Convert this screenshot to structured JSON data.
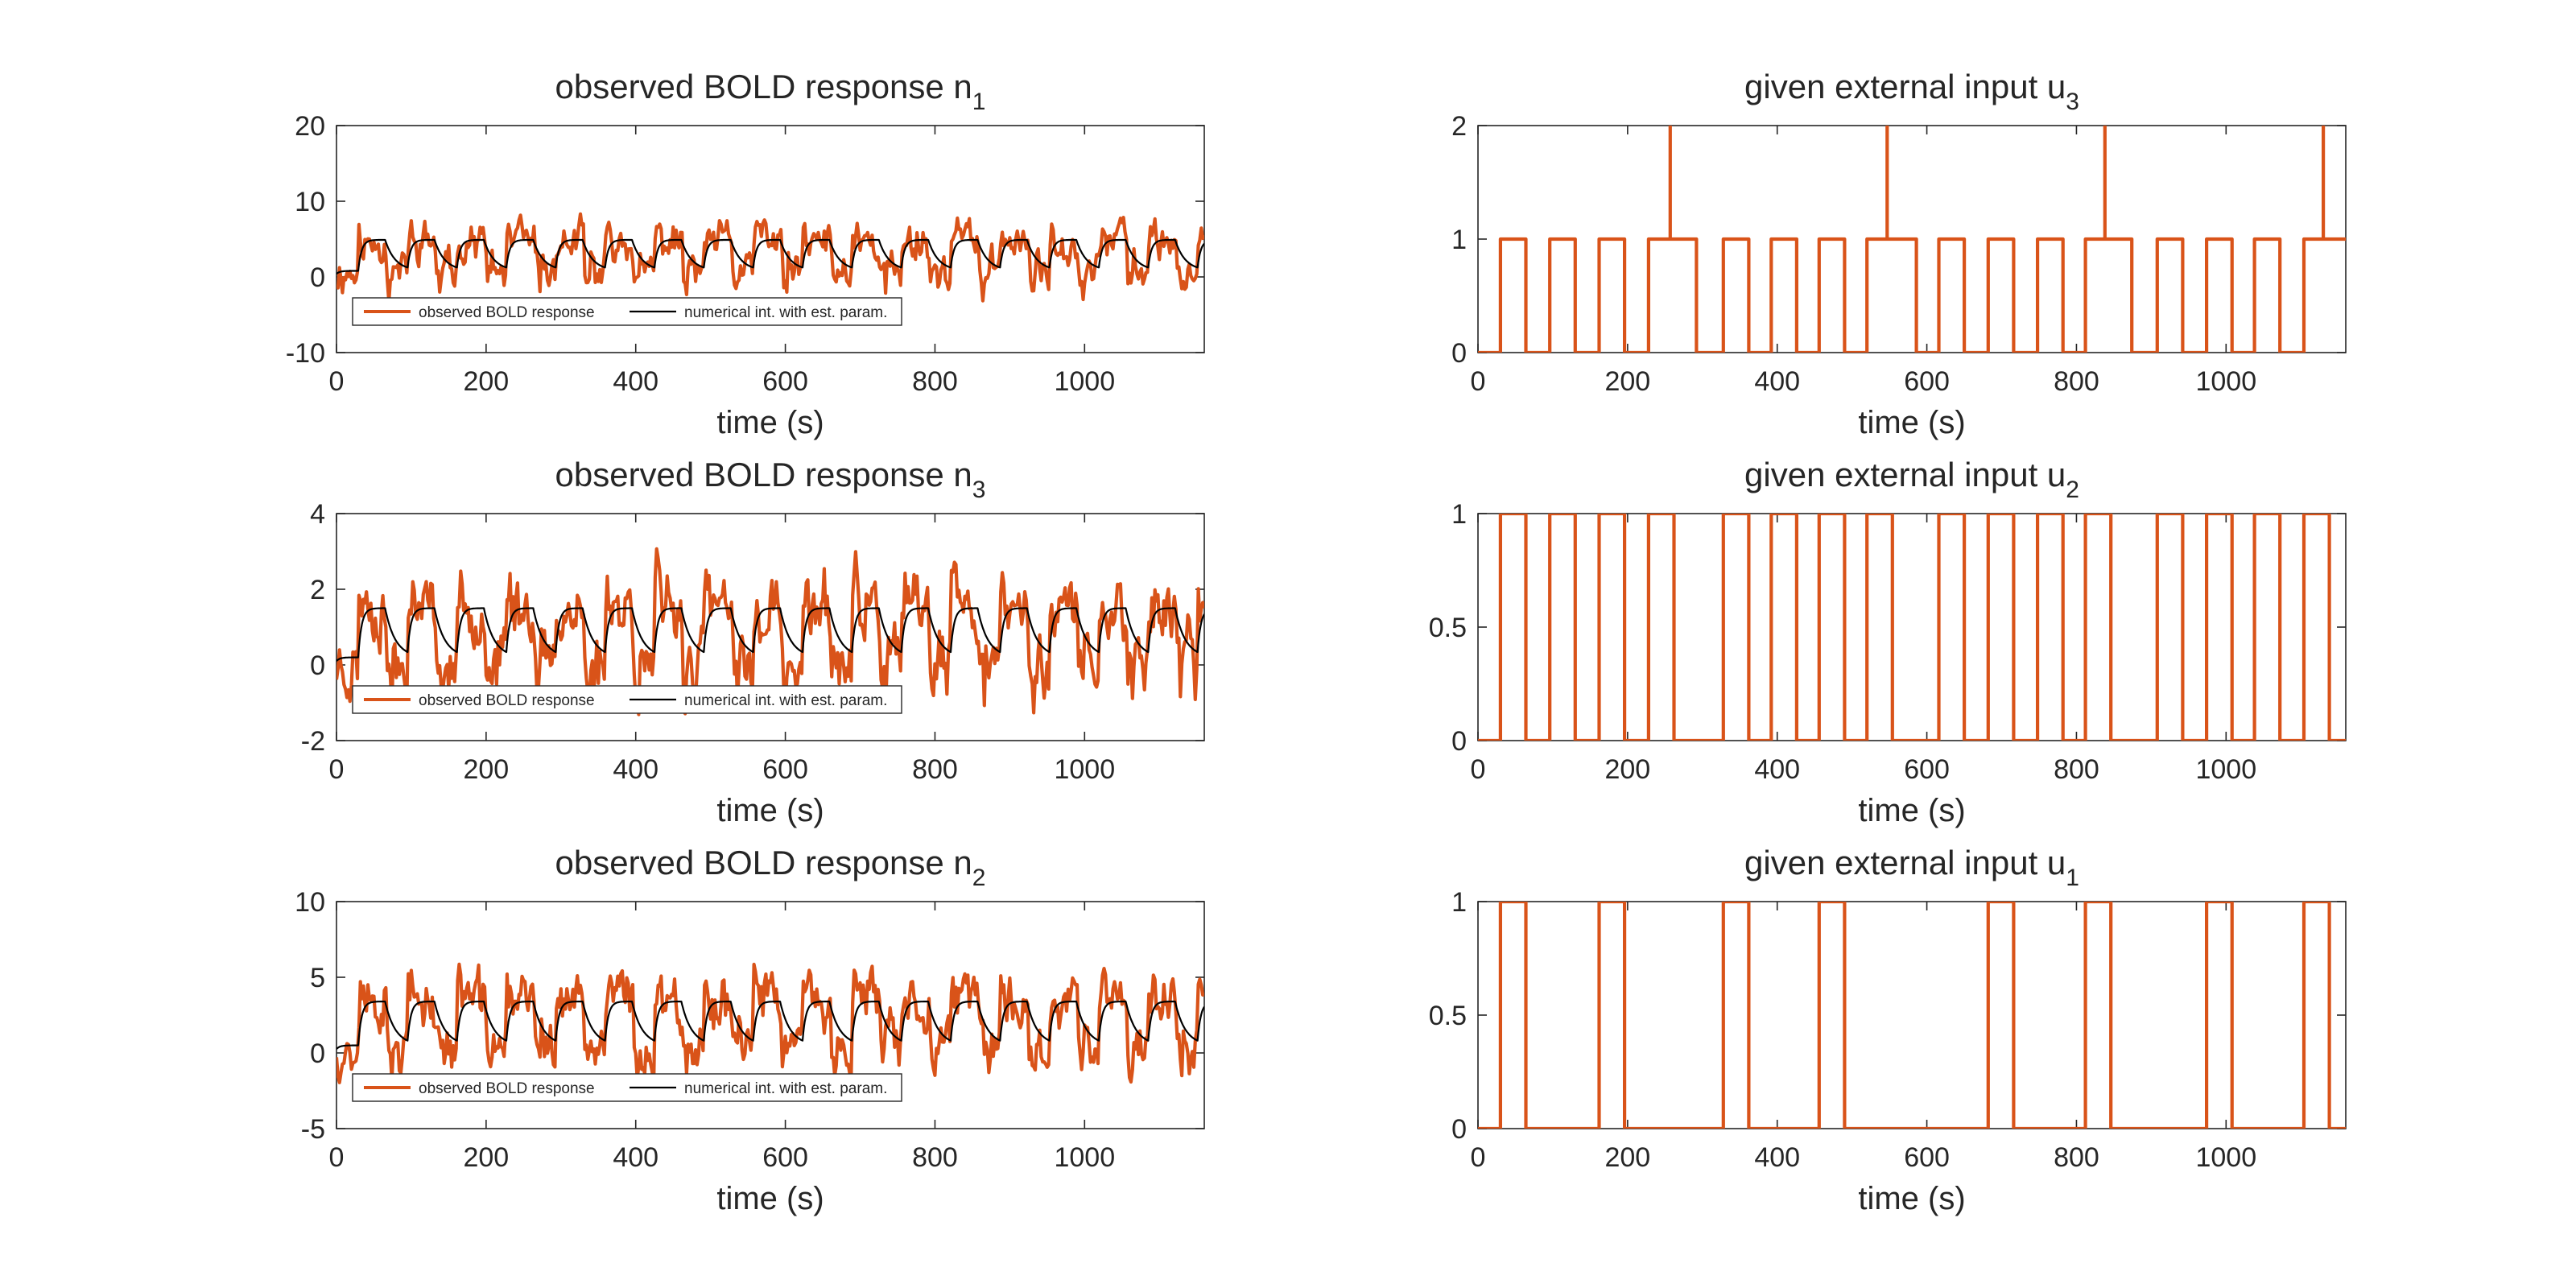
{
  "colors": {
    "observed": "#D95319",
    "fit": "#000000",
    "input": "#D95319",
    "axis": "#262626",
    "background": "#FFFFFF"
  },
  "chart_data": [
    {
      "id": "bold-n1",
      "type": "line",
      "title": "observed BOLD response n",
      "title_subscript": "1",
      "xlabel": "time (s)",
      "ylabel": "",
      "xlim": [
        0,
        1160
      ],
      "ylim": [
        -10,
        20
      ],
      "xticks": [
        0,
        200,
        400,
        600,
        800,
        1000
      ],
      "yticks": [
        -10,
        0,
        10,
        20
      ],
      "xtick_labels": [
        "0",
        "200",
        "400",
        "600",
        "800",
        "1000"
      ],
      "ytick_labels": [
        "-10",
        "0",
        "10",
        "20"
      ],
      "grid": false,
      "legend": {
        "position": "bottom-left",
        "entries": [
          "observed BOLD response",
          "numerical int. with est. param."
        ]
      },
      "noise_seed": 11,
      "series": [
        {
          "name": "observed BOLD response",
          "kind": "bold_observed",
          "block_period": 66,
          "block_on": 36,
          "first_on": 30,
          "low": 0.6,
          "high": 4.8,
          "noise_amp": 2.3,
          "spike_amp": 3.0,
          "dip_amp": 2.5
        },
        {
          "name": "numerical int. with est. param.",
          "kind": "bold_model",
          "block_period": 66,
          "block_on": 36,
          "first_on": 30,
          "low": 0.8,
          "high": 4.9,
          "tau_rise": 5,
          "tau_fall": 14
        }
      ]
    },
    {
      "id": "input-u3",
      "type": "line",
      "title": "given external input u",
      "title_subscript": "3",
      "xlabel": "time (s)",
      "ylabel": "",
      "xlim": [
        0,
        1160
      ],
      "ylim": [
        0,
        2
      ],
      "xticks": [
        0,
        200,
        400,
        600,
        800,
        1000
      ],
      "yticks": [
        0,
        1,
        2
      ],
      "xtick_labels": [
        "0",
        "200",
        "400",
        "600",
        "800",
        "1000"
      ],
      "ytick_labels": [
        "0",
        "1",
        "2"
      ],
      "grid": false,
      "series": [
        {
          "kind": "step",
          "on_intervals": [
            [
              30,
              64
            ],
            [
              96,
              130
            ],
            [
              162,
              196
            ],
            [
              228,
              292
            ],
            [
              328,
              362
            ],
            [
              392,
              426
            ],
            [
              456,
              490
            ],
            [
              520,
              586
            ],
            [
              616,
              650
            ],
            [
              682,
              716
            ],
            [
              748,
              782
            ],
            [
              812,
              874
            ],
            [
              908,
              942
            ],
            [
              974,
              1008
            ],
            [
              1038,
              1072
            ],
            [
              1104,
              1160
            ]
          ],
          "spikes": [
            [
              257,
              2
            ],
            [
              547,
              2
            ],
            [
              838,
              2
            ],
            [
              1130,
              2
            ]
          ]
        }
      ]
    },
    {
      "id": "bold-n3",
      "type": "line",
      "title": "observed BOLD response n",
      "title_subscript": "3",
      "xlabel": "time (s)",
      "ylabel": "",
      "xlim": [
        0,
        1160
      ],
      "ylim": [
        -2,
        4
      ],
      "xticks": [
        0,
        200,
        400,
        600,
        800,
        1000
      ],
      "yticks": [
        -2,
        0,
        2,
        4
      ],
      "xtick_labels": [
        "0",
        "200",
        "400",
        "600",
        "800",
        "1000"
      ],
      "ytick_labels": [
        "-2",
        "0",
        "2",
        "4"
      ],
      "grid": false,
      "legend": {
        "position": "bottom-left",
        "entries": [
          "observed BOLD response",
          "numerical int. with est. param."
        ]
      },
      "noise_seed": 23,
      "series": [
        {
          "name": "observed BOLD response",
          "kind": "bold_observed",
          "block_period": 66,
          "block_on": 36,
          "first_on": 30,
          "low": 0.0,
          "high": 1.5,
          "noise_amp": 0.75,
          "spike_amp": 1.1,
          "dip_amp": 0.9
        },
        {
          "name": "numerical int. with est. param.",
          "kind": "bold_model",
          "block_period": 66,
          "block_on": 36,
          "first_on": 30,
          "low": 0.2,
          "high": 1.5,
          "tau_rise": 5,
          "tau_fall": 14
        }
      ]
    },
    {
      "id": "input-u2",
      "type": "line",
      "title": "given external input u",
      "title_subscript": "2",
      "xlabel": "time (s)",
      "ylabel": "",
      "xlim": [
        0,
        1160
      ],
      "ylim": [
        0,
        1
      ],
      "xticks": [
        0,
        200,
        400,
        600,
        800,
        1000
      ],
      "yticks": [
        0,
        0.5,
        1
      ],
      "xtick_labels": [
        "0",
        "200",
        "400",
        "600",
        "800",
        "1000"
      ],
      "ytick_labels": [
        "0",
        "0.5",
        "1"
      ],
      "grid": false,
      "series": [
        {
          "kind": "step",
          "on_intervals": [
            [
              30,
              64
            ],
            [
              96,
              130
            ],
            [
              162,
              196
            ],
            [
              228,
              262
            ],
            [
              328,
              362
            ],
            [
              392,
              426
            ],
            [
              456,
              490
            ],
            [
              520,
              554
            ],
            [
              616,
              650
            ],
            [
              682,
              716
            ],
            [
              748,
              782
            ],
            [
              812,
              846
            ],
            [
              908,
              942
            ],
            [
              974,
              1008
            ],
            [
              1038,
              1072
            ],
            [
              1104,
              1138
            ]
          ],
          "spikes": []
        }
      ]
    },
    {
      "id": "bold-n2",
      "type": "line",
      "title": "observed BOLD response n",
      "title_subscript": "2",
      "xlabel": "time (s)",
      "ylabel": "",
      "xlim": [
        0,
        1160
      ],
      "ylim": [
        -5,
        10
      ],
      "xticks": [
        0,
        200,
        400,
        600,
        800,
        1000
      ],
      "yticks": [
        -5,
        0,
        5,
        10
      ],
      "xtick_labels": [
        "0",
        "200",
        "400",
        "600",
        "800",
        "1000"
      ],
      "ytick_labels": [
        "-5",
        "0",
        "5",
        "10"
      ],
      "grid": false,
      "legend": {
        "position": "bottom-left",
        "entries": [
          "observed BOLD response",
          "numerical int. with est. param."
        ]
      },
      "noise_seed": 37,
      "series": [
        {
          "name": "observed BOLD response",
          "kind": "bold_observed",
          "block_period": 66,
          "block_on": 36,
          "first_on": 30,
          "low": 0.3,
          "high": 3.5,
          "noise_amp": 1.6,
          "spike_amp": 2.4,
          "dip_amp": 1.8
        },
        {
          "name": "numerical int. with est. param.",
          "kind": "bold_model",
          "block_period": 66,
          "block_on": 36,
          "first_on": 30,
          "low": 0.5,
          "high": 3.4,
          "tau_rise": 5,
          "tau_fall": 14
        }
      ]
    },
    {
      "id": "input-u1",
      "type": "line",
      "title": "given external input u",
      "title_subscript": "1",
      "xlabel": "time (s)",
      "ylabel": "",
      "xlim": [
        0,
        1160
      ],
      "ylim": [
        0,
        1
      ],
      "xticks": [
        0,
        200,
        400,
        600,
        800,
        1000
      ],
      "yticks": [
        0,
        0.5,
        1
      ],
      "xtick_labels": [
        "0",
        "200",
        "400",
        "600",
        "800",
        "1000"
      ],
      "ytick_labels": [
        "0",
        "0.5",
        "1"
      ],
      "grid": false,
      "series": [
        {
          "kind": "step",
          "on_intervals": [
            [
              30,
              64
            ],
            [
              162,
              196
            ],
            [
              328,
              362
            ],
            [
              456,
              490
            ],
            [
              682,
              716
            ],
            [
              812,
              846
            ],
            [
              974,
              1008
            ],
            [
              1104,
              1138
            ]
          ],
          "spikes": []
        }
      ]
    }
  ]
}
